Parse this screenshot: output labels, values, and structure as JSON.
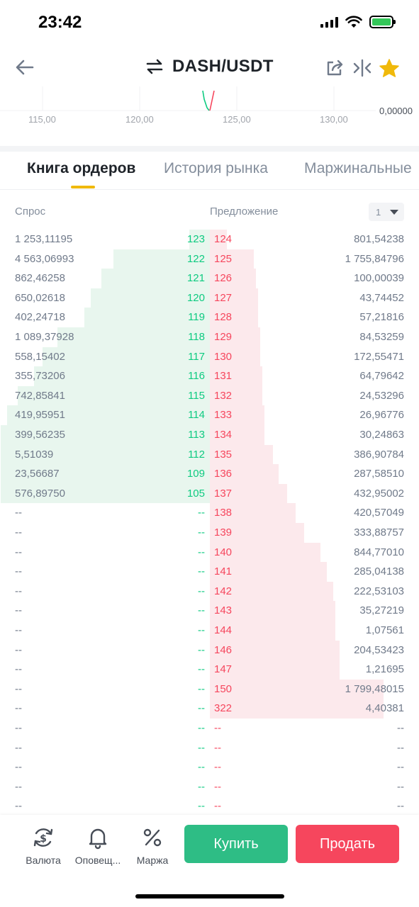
{
  "status_bar": {
    "time": "23:42"
  },
  "header": {
    "pair": "DASH/USDT"
  },
  "mini_chart": {
    "x_ticks": [
      "115,00",
      "120,00",
      "125,00",
      "130,00"
    ],
    "right_value": "0,00000"
  },
  "tabs": [
    {
      "label": "Книга ордеров",
      "active": true
    },
    {
      "label": "История рынка",
      "active": false
    },
    {
      "label": "Маржинальные",
      "active": false
    }
  ],
  "order_book": {
    "bid_label": "Спрос",
    "ask_label": "Предложение",
    "precision": "1",
    "empty": "--",
    "bids": [
      {
        "amount": "1 253,11195",
        "price": "123",
        "depth": 0.1
      },
      {
        "amount": "4 563,06993",
        "price": "122",
        "depth": 0.46
      },
      {
        "amount": "862,46258",
        "price": "121",
        "depth": 0.52
      },
      {
        "amount": "650,02618",
        "price": "120",
        "depth": 0.57
      },
      {
        "amount": "402,24718",
        "price": "119",
        "depth": 0.6
      },
      {
        "amount": "1 089,37928",
        "price": "118",
        "depth": 0.73
      },
      {
        "amount": "558,15402",
        "price": "117",
        "depth": 0.8
      },
      {
        "amount": "355,73206",
        "price": "116",
        "depth": 0.84
      },
      {
        "amount": "742,85841",
        "price": "115",
        "depth": 0.92
      },
      {
        "amount": "419,95951",
        "price": "114",
        "depth": 0.97
      },
      {
        "amount": "399,56235",
        "price": "113",
        "depth": 1.0
      },
      {
        "amount": "5,51039",
        "price": "112",
        "depth": 1.0
      },
      {
        "amount": "23,56687",
        "price": "109",
        "depth": 1.0
      },
      {
        "amount": "576,89750",
        "price": "105",
        "depth": 1.0
      }
    ],
    "asks": [
      {
        "price": "124",
        "amount": "801,54238",
        "depth": 0.08
      },
      {
        "price": "125",
        "amount": "1 755,84796",
        "depth": 0.21
      },
      {
        "price": "126",
        "amount": "100,00039",
        "depth": 0.22
      },
      {
        "price": "127",
        "amount": "43,74452",
        "depth": 0.23
      },
      {
        "price": "128",
        "amount": "57,21816",
        "depth": 0.23
      },
      {
        "price": "129",
        "amount": "84,53259",
        "depth": 0.24
      },
      {
        "price": "130",
        "amount": "172,55471",
        "depth": 0.24
      },
      {
        "price": "131",
        "amount": "64,79642",
        "depth": 0.25
      },
      {
        "price": "132",
        "amount": "24,53296",
        "depth": 0.25
      },
      {
        "price": "133",
        "amount": "26,96776",
        "depth": 0.26
      },
      {
        "price": "134",
        "amount": "30,24863",
        "depth": 0.26
      },
      {
        "price": "135",
        "amount": "386,90784",
        "depth": 0.3
      },
      {
        "price": "136",
        "amount": "287,58510",
        "depth": 0.33
      },
      {
        "price": "137",
        "amount": "432,95002",
        "depth": 0.37
      },
      {
        "price": "138",
        "amount": "420,57049",
        "depth": 0.41
      },
      {
        "price": "139",
        "amount": "333,88757",
        "depth": 0.45
      },
      {
        "price": "140",
        "amount": "844,77010",
        "depth": 0.53
      },
      {
        "price": "141",
        "amount": "285,04138",
        "depth": 0.56
      },
      {
        "price": "142",
        "amount": "222,53103",
        "depth": 0.59
      },
      {
        "price": "143",
        "amount": "35,27219",
        "depth": 0.6
      },
      {
        "price": "144",
        "amount": "1,07561",
        "depth": 0.6
      },
      {
        "price": "146",
        "amount": "204,53423",
        "depth": 0.62
      },
      {
        "price": "147",
        "amount": "1,21695",
        "depth": 0.62
      },
      {
        "price": "150",
        "amount": "1 799,48015",
        "depth": 0.83
      },
      {
        "price": "322",
        "amount": "4,40381",
        "depth": 0.83
      }
    ],
    "total_rows": 30
  },
  "bottom_bar": {
    "nav": [
      {
        "label": "Валюта",
        "icon": "currency-exchange-icon"
      },
      {
        "label": "Оповещ...",
        "icon": "bell-icon"
      },
      {
        "label": "Маржа",
        "icon": "percent-icon"
      }
    ],
    "buy_label": "Купить",
    "sell_label": "Продать"
  },
  "colors": {
    "bid": "#0ecb81",
    "ask": "#f6465d",
    "accent": "#f0b90b",
    "buy_button": "#2ebd85",
    "sell_button": "#f6465d"
  }
}
